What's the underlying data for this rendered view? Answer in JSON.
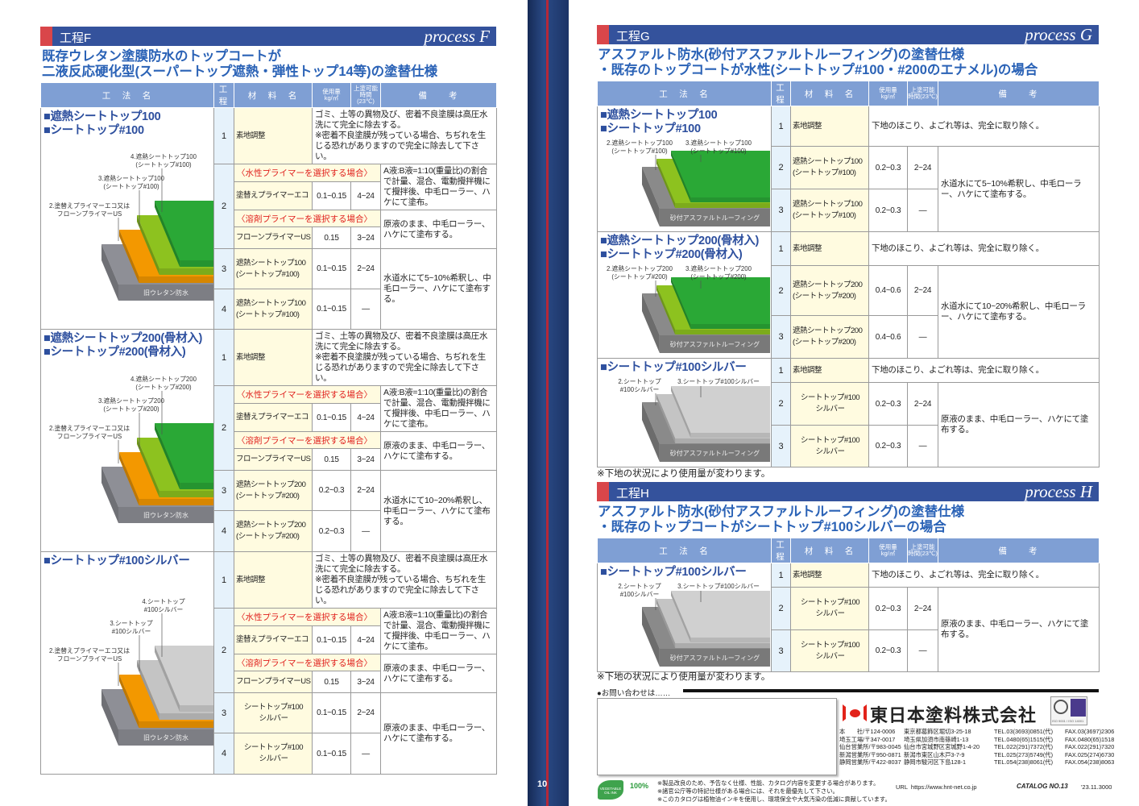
{
  "page_number": "10",
  "colors": {
    "bar": "#34529c",
    "accent_red": "#d9464a",
    "title_blue": "#2a62b6",
    "header_blue": "#7f9fd4"
  },
  "table_headers": [
    "工　法　名",
    "工程",
    "材　料　名",
    "使用量\nkg/㎡",
    "上塗可能\n時間(23℃)",
    "備　　考"
  ],
  "processes": [
    {
      "label": "工程F",
      "process_label": "process F",
      "title_lines": [
        "既存ウレタン塗膜防水のトップコートが",
        "二液反応硬化型(スーパートップ遮熱・弾性トップ14等)の塗替仕様"
      ],
      "sections": [
        {
          "names": [
            "■遮熱シートトップ100",
            "■シートトップ#100"
          ],
          "diagram": {
            "labels": [
              [
                "2.塗替えプライマーエコ又は",
                "フローンプライマーUS"
              ],
              [
                "3.遮熱シートトップ100",
                "(シートトップ#100)"
              ],
              [
                "4.遮熱シートトップ100",
                "(シートトップ#100)"
              ]
            ],
            "base_label": "旧ウレタン防水",
            "layer_colors": [
              "#8e8f96",
              "#f39800",
              "#8dc21f",
              "#2aa836"
            ]
          },
          "steps": [
            {
              "type": "simple",
              "no": "1",
              "material": "素地調整",
              "note": "ゴミ、土等の異物及び、密着不良塗膜は高圧水洗にて完全に除去する。\n※密着不良塗膜が残っている場合、ちぢれを生じる恐れがありますので完全に除去して下さい。"
            },
            {
              "type": "options",
              "no": "2",
              "options": [
                {
                  "heading": "〈水性プライマーを選択する場合〉",
                  "material": "塗替えプライマーエコ",
                  "usage": "0.1~0.15",
                  "interval": "4~24",
                  "note": "A液:B液=1:10(重量比)の割合で計量、混合、電動攪拌機にて攪拌後、中毛ローラー、ハケにて塗布。"
                },
                {
                  "heading": "〈溶剤プライマーを選択する場合〉",
                  "material": "フローンプライマーUS",
                  "usage": "0.15",
                  "interval": "3~24",
                  "note": "原液のまま、中毛ローラー、ハケにて塗布する。"
                }
              ]
            },
            {
              "type": "pair",
              "rows": [
                {
                  "no": "3",
                  "material": "遮熱シートトップ100\n(シートトップ#100)",
                  "usage": "0.1~0.15",
                  "interval": "2~24"
                },
                {
                  "no": "4",
                  "material": "遮熱シートトップ100\n(シートトップ#100)",
                  "usage": "0.1~0.15",
                  "interval": "—"
                }
              ],
              "note": "水道水にて5~10%希釈し、中毛ローラー、ハケにて塗布する。"
            }
          ]
        },
        {
          "names": [
            "■遮熱シートトップ200(骨材入)",
            "■シートトップ#200(骨材入)"
          ],
          "diagram": {
            "labels": [
              [
                "2.塗替えプライマーエコ又は",
                "フローンプライマーUS"
              ],
              [
                "3.遮熱シートトップ200",
                "(シートトップ#200)"
              ],
              [
                "4.遮熱シートトップ200",
                "(シートトップ#200)"
              ]
            ],
            "base_label": "旧ウレタン防水",
            "layer_colors": [
              "#8e8f96",
              "#f39800",
              "#8dc21f",
              "#2aa836"
            ]
          },
          "steps": [
            {
              "type": "simple",
              "no": "1",
              "material": "素地調整",
              "note": "ゴミ、土等の異物及び、密着不良塗膜は高圧水洗にて完全に除去する。\n※密着不良塗膜が残っている場合、ちぢれを生じる恐れがありますので完全に除去して下さい。"
            },
            {
              "type": "options",
              "no": "2",
              "options": [
                {
                  "heading": "〈水性プライマーを選択する場合〉",
                  "material": "塗替えプライマーエコ",
                  "usage": "0.1~0.15",
                  "interval": "4~24",
                  "note": "A液:B液=1:10(重量比)の割合で計量、混合、電動攪拌機にて攪拌後、中毛ローラー、ハケにて塗布。"
                },
                {
                  "heading": "〈溶剤プライマーを選択する場合〉",
                  "material": "フローンプライマーUS",
                  "usage": "0.15",
                  "interval": "3~24",
                  "note": "原液のまま、中毛ローラー、ハケにて塗布する。"
                }
              ]
            },
            {
              "type": "pair",
              "rows": [
                {
                  "no": "3",
                  "material": "遮熱シートトップ200\n(シートトップ#200)",
                  "usage": "0.2~0.3",
                  "interval": "2~24"
                },
                {
                  "no": "4",
                  "material": "遮熱シートトップ200\n(シートトップ#200)",
                  "usage": "0.2~0.3",
                  "interval": "—"
                }
              ],
              "note": "水道水にて10~20%希釈し、中毛ローラー、ハケにて塗布する。"
            }
          ]
        },
        {
          "names": [
            "■シートトップ#100シルバー"
          ],
          "diagram": {
            "labels": [
              [
                "2.塗替えプライマーエコ又は",
                "フローンプライマーUS"
              ],
              [
                "3.シートトップ",
                "#100シルバー"
              ],
              [
                "4.シートトップ",
                "#100シルバー"
              ]
            ],
            "base_label": "旧ウレタン防水",
            "layer_colors": [
              "#8e8f96",
              "#f39800",
              "#c4c4c4",
              "#cfcfcf"
            ]
          },
          "steps": [
            {
              "type": "simple",
              "no": "1",
              "material": "素地調整",
              "note": "ゴミ、土等の異物及び、密着不良塗膜は高圧水洗にて完全に除去する。\n※密着不良塗膜が残っている場合、ちぢれを生じる恐れがありますので完全に除去して下さい。"
            },
            {
              "type": "options",
              "no": "2",
              "options": [
                {
                  "heading": "〈水性プライマーを選択する場合〉",
                  "material": "塗替えプライマーエコ",
                  "usage": "0.1~0.15",
                  "interval": "4~24",
                  "note": "A液:B液=1:10(重量比)の割合で計量、混合、電動攪拌機にて攪拌後、中毛ローラー、ハケにて塗布。"
                },
                {
                  "heading": "〈溶剤プライマーを選択する場合〉",
                  "material": "フローンプライマーUS",
                  "usage": "0.15",
                  "interval": "3~24",
                  "note": "原液のまま、中毛ローラー、ハケにて塗布する。"
                }
              ]
            },
            {
              "type": "pair",
              "center": true,
              "rows": [
                {
                  "no": "3",
                  "material": "シートトップ#100\nシルバー",
                  "usage": "0.1~0.15",
                  "interval": "2~24"
                },
                {
                  "no": "4",
                  "material": "シートトップ#100\nシルバー",
                  "usage": "0.1~0.15",
                  "interval": "—"
                }
              ],
              "note": "原液のまま、中毛ローラー、ハケにて塗布する。"
            }
          ]
        }
      ]
    },
    {
      "label": "工程G",
      "process_label": "process G",
      "title_lines": [
        "アスファルト防水(砂付アスファルトルーフィング)の塗替仕様",
        "・既存のトップコートが水性(シートトップ#100・#200のエナメル)の場合"
      ],
      "sections": [
        {
          "names": [
            "■遮熱シートトップ100",
            "■シートトップ#100"
          ],
          "diagram": {
            "labels": [
              [
                "2.遮熱シートトップ100",
                "(シートトップ#100)"
              ],
              [
                "3.遮熱シートトップ100",
                "(シートトップ#100)"
              ]
            ],
            "base_label": "砂付アスファルトルーフィング",
            "layer_colors": [
              "#8a8a8a",
              "#8dc21f",
              "#2aa836"
            ]
          },
          "steps": [
            {
              "type": "simple",
              "no": "1",
              "material": "素地調整",
              "note": "下地のほこり、よごれ等は、完全に取り除く。"
            },
            {
              "type": "pair",
              "rows": [
                {
                  "no": "2",
                  "material": "遮熱シートトップ100\n(シートトップ#100)",
                  "usage": "0.2~0.3",
                  "interval": "2~24"
                },
                {
                  "no": "3",
                  "material": "遮熱シートトップ100\n(シートトップ#100)",
                  "usage": "0.2~0.3",
                  "interval": "—"
                }
              ],
              "note": "水道水にて5~10%希釈し、中毛ローラー、ハケにて塗布する。"
            }
          ]
        },
        {
          "names": [
            "■遮熱シートトップ200(骨材入)",
            "■シートトップ#200(骨材入)"
          ],
          "diagram": {
            "labels": [
              [
                "2.遮熱シートトップ200",
                "(シートトップ#200)"
              ],
              [
                "3.遮熱シートトップ200",
                "(シートトップ#200)"
              ]
            ],
            "base_label": "砂付アスファルトルーフィング",
            "layer_colors": [
              "#8a8a8a",
              "#8dc21f",
              "#2aa836"
            ]
          },
          "steps": [
            {
              "type": "simple",
              "no": "1",
              "material": "素地調整",
              "note": "下地のほこり、よごれ等は、完全に取り除く。"
            },
            {
              "type": "pair",
              "rows": [
                {
                  "no": "2",
                  "material": "遮熱シートトップ200\n(シートトップ#200)",
                  "usage": "0.4~0.6",
                  "interval": "2~24"
                },
                {
                  "no": "3",
                  "material": "遮熱シートトップ200\n(シートトップ#200)",
                  "usage": "0.4~0.6",
                  "interval": "—"
                }
              ],
              "note": "水道水にて10~20%希釈し、中毛ローラー、ハケにて塗布する。"
            }
          ]
        },
        {
          "names": [
            "■シートトップ#100シルバー"
          ],
          "diagram": {
            "labels": [
              [
                "2.シートトップ",
                "#100シルバー"
              ],
              [
                "3.シートトップ#100シルバー",
                ""
              ]
            ],
            "base_label": "砂付アスファルトルーフィング",
            "layer_colors": [
              "#8a8a8a",
              "#c4c4c4",
              "#d0d0d0"
            ]
          },
          "steps": [
            {
              "type": "simple",
              "no": "1",
              "material": "素地調整",
              "note": "下地のほこり、よごれ等は、完全に取り除く。"
            },
            {
              "type": "pair",
              "center": true,
              "rows": [
                {
                  "no": "2",
                  "material": "シートトップ#100\nシルバー",
                  "usage": "0.2~0.3",
                  "interval": "2~24"
                },
                {
                  "no": "3",
                  "material": "シートトップ#100\nシルバー",
                  "usage": "0.2~0.3",
                  "interval": "—"
                }
              ],
              "note": "原液のまま、中毛ローラー、ハケにて塗布する。"
            }
          ]
        }
      ],
      "footnote": "※下地の状況により使用量が変わります。"
    },
    {
      "label": "工程H",
      "process_label": "process H",
      "title_lines": [
        "アスファルト防水(砂付アスファルトルーフィング)の塗替仕様",
        "・既存のトップコートがシートトップ#100シルバーの場合"
      ],
      "sections": [
        {
          "names": [
            "■シートトップ#100シルバー"
          ],
          "diagram": {
            "labels": [
              [
                "2.シートトップ",
                "#100シルバー"
              ],
              [
                "3.シートトップ#100シルバー",
                ""
              ]
            ],
            "base_label": "砂付アスファルトルーフィング",
            "layer_colors": [
              "#8a8a8a",
              "#c4c4c4",
              "#d0d0d0"
            ]
          },
          "steps": [
            {
              "type": "simple",
              "no": "1",
              "material": "素地調整",
              "note": "下地のほこり、よごれ等は、完全に取り除く。"
            },
            {
              "type": "pair",
              "center": true,
              "rows": [
                {
                  "no": "2",
                  "material": "シートトップ#100\nシルバー",
                  "usage": "0.2~0.3",
                  "interval": "2~24"
                },
                {
                  "no": "3",
                  "material": "シートトップ#100\nシルバー",
                  "usage": "0.2~0.3",
                  "interval": "—"
                }
              ],
              "note": "原液のまま、中毛ローラー、ハケにて塗布する。"
            }
          ]
        }
      ],
      "footnote": "※下地の状況により使用量が変わります。"
    }
  ],
  "footer": {
    "inquiry_label": "●お問い合わせは……",
    "company_name": "東日本塗料株式会社",
    "offices": [
      [
        "本　　社/〒124-0006",
        "東京都葛飾区堀切3-25-18",
        "TEL.03(3693)0851(代)",
        "FAX.03(3697)2306"
      ],
      [
        "埼玉工場/〒347-0017",
        "埼玉県加須市南篠崎1-13",
        "TEL.0480(65)1515(代)",
        "FAX.0480(65)1518"
      ],
      [
        "仙台営業所/〒983-0045",
        "仙台市宮城野区宮城野1-4-20",
        "TEL.022(291)7372(代)",
        "FAX.022(291)7320"
      ],
      [
        "新潟営業所/〒950-0871",
        "新潟市東区山木戸3-7-9",
        "TEL.025(273)5749(代)",
        "FAX.025(274)6730"
      ],
      [
        "静岡営業所/〒422-8037",
        "静岡市駿河区下島128-1",
        "TEL.054(238)8061(代)",
        "FAX.054(238)8063"
      ]
    ],
    "iso_label": "ISO 9001 / ISO 14001",
    "notes": [
      "※製品改良のため、予告なく仕様、性能、カタログ内容を変更する場合があります。",
      "※諸官公庁等の特記仕様がある場合には、それを最優先して下さい。",
      "※このカタログは植物油インキを使用し、環境保全や大気汚染の低減に貢献しています。"
    ],
    "eco_badges": [
      "VEGETABLE OIL INK",
      "100%"
    ],
    "url": "URL  https://www.hnt-net.co.jp",
    "catalog": "CATALOG NO.13",
    "catalog_date": "'23.11.3000"
  }
}
